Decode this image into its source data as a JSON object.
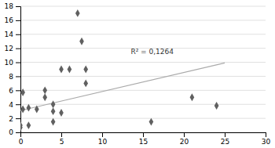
{
  "chart_data": {
    "type": "scatter",
    "x": [
      0,
      0,
      0.3,
      0.3,
      1,
      1,
      2,
      3,
      3,
      4,
      4,
      4,
      5,
      5,
      6,
      7,
      7.5,
      8,
      8,
      16,
      21,
      24
    ],
    "values": [
      1,
      0.7,
      3.3,
      5.7,
      1,
      3.5,
      3.3,
      6,
      5,
      3,
      4,
      1.5,
      2.8,
      9,
      9,
      17,
      13,
      9,
      7,
      1.5,
      5,
      3.8
    ],
    "color": "#606060",
    "marker": "diamond",
    "trendline": {
      "x": [
        0,
        25
      ],
      "values": [
        3.1,
        9.9
      ],
      "color": "#aaaaaa"
    },
    "annotations": [
      {
        "text": "R² = 0,1264",
        "x": 13.5,
        "y": 11.2
      }
    ],
    "xlim": [
      0,
      30
    ],
    "ylim": [
      0,
      18
    ],
    "xticks": [
      0,
      5,
      10,
      15,
      20,
      25,
      30
    ],
    "yticks": [
      0,
      2,
      4,
      6,
      8,
      10,
      12,
      14,
      16,
      18
    ],
    "grid": "y"
  }
}
